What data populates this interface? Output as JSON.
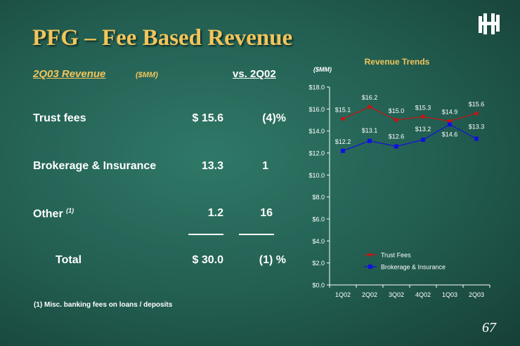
{
  "title": "PFG – Fee Based Revenue",
  "table": {
    "heading": "2Q03 Revenue",
    "units": "($MM)",
    "compare_heading": "vs. 2Q02",
    "rows": [
      {
        "label": "Trust fees",
        "footnote": "",
        "value": "$ 15.6",
        "change": "(4)%"
      },
      {
        "label": "Brokerage & Insurance",
        "footnote": "",
        "value": "13.3",
        "change": "1"
      },
      {
        "label": "Other",
        "footnote": "(1)",
        "value": "1.2",
        "change": "16"
      }
    ],
    "total": {
      "label": "Total",
      "value": "$ 30.0",
      "change": "(1) %"
    }
  },
  "footnote": "(1)   Misc. banking fees on loans / deposits",
  "page_number": "67",
  "colors": {
    "accent": "#f2c55c",
    "trust": "#cc1111",
    "brokerage": "#1111dd"
  },
  "chart_data": {
    "type": "line",
    "title": "Revenue Trends",
    "units_label": "($MM)",
    "categories": [
      "1Q02",
      "2Q02",
      "3Q02",
      "4Q02",
      "1Q03",
      "2Q03"
    ],
    "series": [
      {
        "name": "Trust Fees",
        "values": [
          15.1,
          16.2,
          15.0,
          15.3,
          14.9,
          15.6
        ],
        "labels": [
          "$15.1",
          "$16.2",
          "$15.0",
          "$15.3",
          "$14.9",
          "$15.6"
        ]
      },
      {
        "name": "Brokerage & Insurance",
        "values": [
          12.2,
          13.1,
          12.6,
          13.2,
          14.6,
          13.3
        ],
        "labels": [
          "$12.2",
          "$13.1",
          "$12.6",
          "$13.2",
          "$14.6",
          "$13.3"
        ]
      }
    ],
    "ylim": [
      0,
      18
    ],
    "yticks": [
      "$0.0",
      "$2.0",
      "$4.0",
      "$6.0",
      "$8.0",
      "$10.0",
      "$12.0",
      "$14.0",
      "$16.0",
      "$18.0"
    ],
    "legend_position": "bottom-center-inside",
    "grid": false
  }
}
